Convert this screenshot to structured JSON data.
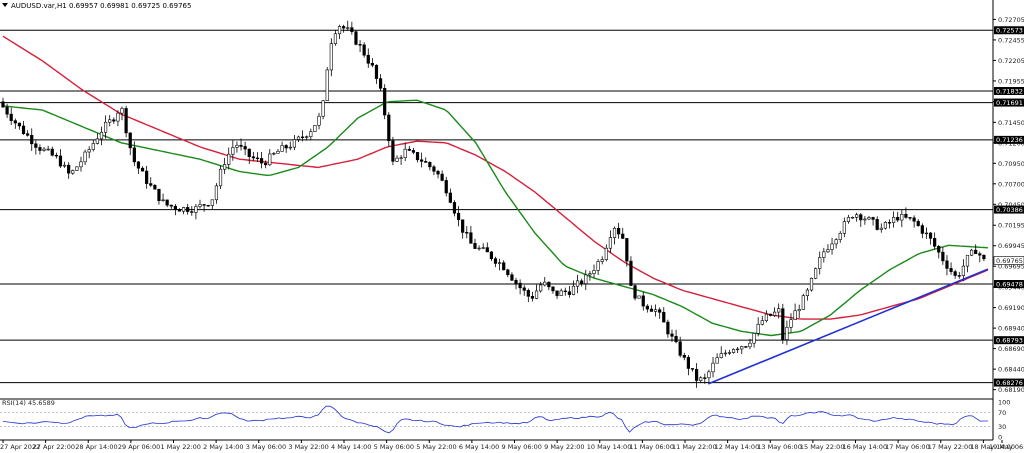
{
  "header": {
    "title": "AUDUSD.var,H1  0.69957 0.69981 0.69725 0.69765"
  },
  "chart_data": {
    "type": "candlestick",
    "symbol": "AUDUSD.var",
    "timeframe": "H1",
    "ohlc_readout": {
      "open": 0.69957,
      "high": 0.69981,
      "low": 0.69725,
      "close": 0.69765
    },
    "ylim": [
      0.681,
      0.7282
    ],
    "y_ticks": [
      "0.72705",
      "0.72455",
      "0.72205",
      "0.71955",
      "0.71705",
      "0.71450",
      "0.71200",
      "0.70950",
      "0.70700",
      "0.70450",
      "0.70195",
      "0.69945",
      "0.69695",
      "0.69440",
      "0.69190",
      "0.68940",
      "0.68690",
      "0.68440",
      "0.68190"
    ],
    "x_ticks": [
      "27 Apr 2022",
      "27 Apr 22:00",
      "28 Apr 14:00",
      "29 Apr 06:00",
      "1 May 22:00",
      "2 May 14:00",
      "3 May 06:00",
      "3 May 22:00",
      "4 May 14:00",
      "5 May 06:00",
      "5 May 22:00",
      "6 May 14:00",
      "9 May 06:00",
      "9 May 22:00",
      "10 May 14:00",
      "11 May 06:00",
      "11 May 22:00",
      "12 May 14:00",
      "13 May 06:00",
      "15 May 22:00",
      "16 May 14:00",
      "17 May 06:00",
      "17 May 22:00",
      "18 May 14:00",
      "19 May 06:00"
    ],
    "levels": [
      {
        "value": 0.72573,
        "label": "0.72573"
      },
      {
        "value": 0.71832,
        "label": "0.71832"
      },
      {
        "value": 0.71691,
        "label": "0.71691"
      },
      {
        "value": 0.71236,
        "label": "0.71236"
      },
      {
        "value": 0.70386,
        "label": "0.70386"
      },
      {
        "value": 0.69478,
        "label": "0.69478"
      },
      {
        "value": 0.68793,
        "label": "0.68793"
      },
      {
        "value": 0.68276,
        "label": "0.68276"
      }
    ],
    "current_price": {
      "value": 0.69765,
      "label": "0.69765"
    },
    "candle_count": 240,
    "price_anchors": [
      [
        0,
        0.717
      ],
      [
        10,
        0.714
      ],
      [
        20,
        0.7115
      ],
      [
        30,
        0.71
      ],
      [
        36,
        0.708
      ],
      [
        44,
        0.7105
      ],
      [
        52,
        0.7135
      ],
      [
        58,
        0.715
      ],
      [
        62,
        0.7165
      ],
      [
        68,
        0.71
      ],
      [
        76,
        0.707
      ],
      [
        84,
        0.7045
      ],
      [
        92,
        0.704
      ],
      [
        100,
        0.704
      ],
      [
        108,
        0.705
      ],
      [
        114,
        0.7095
      ],
      [
        120,
        0.712
      ],
      [
        126,
        0.7105
      ],
      [
        134,
        0.7095
      ],
      [
        142,
        0.711
      ],
      [
        150,
        0.712
      ],
      [
        158,
        0.7135
      ],
      [
        164,
        0.7155
      ],
      [
        168,
        0.724
      ],
      [
        172,
        0.7265
      ],
      [
        178,
        0.7255
      ],
      [
        184,
        0.7235
      ],
      [
        190,
        0.721
      ],
      [
        194,
        0.718
      ],
      [
        197,
        0.714
      ],
      [
        200,
        0.7095
      ],
      [
        206,
        0.711
      ],
      [
        214,
        0.71
      ],
      [
        222,
        0.7085
      ],
      [
        228,
        0.706
      ],
      [
        234,
        0.702
      ],
      [
        240,
        0.6995
      ],
      [
        248,
        0.6985
      ],
      [
        256,
        0.697
      ],
      [
        264,
        0.6945
      ],
      [
        270,
        0.693
      ],
      [
        276,
        0.695
      ],
      [
        282,
        0.6935
      ],
      [
        290,
        0.694
      ],
      [
        298,
        0.6955
      ],
      [
        306,
        0.698
      ],
      [
        312,
        0.702
      ],
      [
        318,
        0.7
      ],
      [
        320,
        0.6945
      ],
      [
        326,
        0.6925
      ],
      [
        334,
        0.6915
      ],
      [
        342,
        0.688
      ],
      [
        348,
        0.6855
      ],
      [
        354,
        0.6832
      ],
      [
        358,
        0.683
      ],
      [
        364,
        0.6855
      ],
      [
        372,
        0.687
      ],
      [
        380,
        0.6875
      ],
      [
        388,
        0.6905
      ],
      [
        396,
        0.6915
      ],
      [
        398,
        0.688
      ],
      [
        402,
        0.6905
      ],
      [
        410,
        0.6935
      ],
      [
        418,
        0.6985
      ],
      [
        426,
        0.701
      ],
      [
        434,
        0.7035
      ],
      [
        440,
        0.7028
      ],
      [
        448,
        0.7015
      ],
      [
        456,
        0.703
      ],
      [
        464,
        0.7025
      ],
      [
        472,
        0.7005
      ],
      [
        480,
        0.6975
      ],
      [
        486,
        0.6955
      ],
      [
        492,
        0.698
      ],
      [
        496,
        0.699
      ],
      [
        500,
        0.6976
      ]
    ],
    "sma_green": [
      [
        0,
        0.7165
      ],
      [
        20,
        0.716
      ],
      [
        40,
        0.714
      ],
      [
        60,
        0.712
      ],
      [
        80,
        0.711
      ],
      [
        100,
        0.71
      ],
      [
        120,
        0.7085
      ],
      [
        135,
        0.708
      ],
      [
        150,
        0.709
      ],
      [
        165,
        0.7115
      ],
      [
        180,
        0.715
      ],
      [
        195,
        0.717
      ],
      [
        210,
        0.7172
      ],
      [
        225,
        0.716
      ],
      [
        240,
        0.712
      ],
      [
        255,
        0.706
      ],
      [
        270,
        0.701
      ],
      [
        285,
        0.697
      ],
      [
        300,
        0.6955
      ],
      [
        315,
        0.6945
      ],
      [
        330,
        0.6935
      ],
      [
        345,
        0.692
      ],
      [
        360,
        0.69
      ],
      [
        375,
        0.689
      ],
      [
        390,
        0.6885
      ],
      [
        405,
        0.689
      ],
      [
        420,
        0.691
      ],
      [
        435,
        0.694
      ],
      [
        450,
        0.6965
      ],
      [
        465,
        0.6985
      ],
      [
        480,
        0.6995
      ],
      [
        500,
        0.6992
      ]
    ],
    "sma_red": [
      [
        0,
        0.725
      ],
      [
        20,
        0.722
      ],
      [
        40,
        0.7185
      ],
      [
        60,
        0.7155
      ],
      [
        80,
        0.7135
      ],
      [
        100,
        0.7115
      ],
      [
        120,
        0.71
      ],
      [
        140,
        0.7095
      ],
      [
        160,
        0.709
      ],
      [
        180,
        0.71
      ],
      [
        195,
        0.7115
      ],
      [
        210,
        0.7122
      ],
      [
        225,
        0.712
      ],
      [
        240,
        0.7105
      ],
      [
        255,
        0.7085
      ],
      [
        270,
        0.706
      ],
      [
        285,
        0.703
      ],
      [
        300,
        0.7
      ],
      [
        315,
        0.6975
      ],
      [
        330,
        0.6955
      ],
      [
        345,
        0.694
      ],
      [
        360,
        0.693
      ],
      [
        375,
        0.692
      ],
      [
        390,
        0.691
      ],
      [
        405,
        0.6905
      ],
      [
        420,
        0.6905
      ],
      [
        435,
        0.691
      ],
      [
        450,
        0.692
      ],
      [
        465,
        0.693
      ],
      [
        480,
        0.6945
      ],
      [
        500,
        0.6965
      ]
    ],
    "trendline": {
      "from": [
        358,
        0.6826
      ],
      "to": [
        500,
        0.6966
      ],
      "color": "#1f2fd6"
    },
    "colors": {
      "candle": "#000000",
      "sma_green": "#1a8a1a",
      "sma_red": "#d6203a",
      "levels": "#000000",
      "trend": "#1f2fd6"
    },
    "rsi": {
      "label": "RSI(14) 45.6589",
      "period": 14,
      "value": 45.6589,
      "ylim": [
        0,
        100
      ],
      "ticks": [
        "100",
        "70",
        "30",
        "0"
      ],
      "levels": [
        70,
        30
      ],
      "color": "#1f2fd6"
    }
  }
}
